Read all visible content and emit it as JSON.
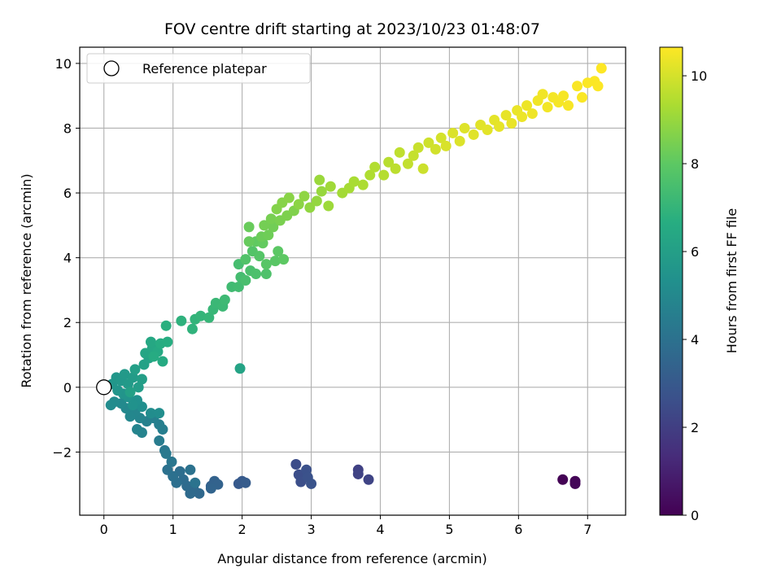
{
  "chart_data": {
    "type": "scatter",
    "title": "FOV centre drift starting at 2023/10/23 01:48:07",
    "xlabel": "Angular distance from reference (arcmin)",
    "ylabel": "Rotation from reference (arcmin)",
    "xlim": [
      -0.35,
      7.55
    ],
    "ylim": [
      -3.95,
      10.5
    ],
    "xticks": [
      0,
      1,
      2,
      3,
      4,
      5,
      6,
      7
    ],
    "yticks": [
      -2,
      0,
      2,
      4,
      6,
      8,
      10
    ],
    "ytick_labels": [
      "−2",
      "0",
      "2",
      "4",
      "6",
      "8",
      "10"
    ],
    "grid": true,
    "legend": {
      "placement": "top-left",
      "entries": [
        "Reference platepar"
      ]
    },
    "reference_point": {
      "x": 0,
      "y": 0
    },
    "colorbar": {
      "label": "Hours from first FF file",
      "colormap": "viridis",
      "range": [
        0,
        10.65
      ],
      "ticks": [
        0,
        2,
        4,
        6,
        8,
        10
      ]
    },
    "colormap_stops": [
      "#440154",
      "#472c7a",
      "#3b518b",
      "#2c718e",
      "#21908d",
      "#27ad81",
      "#5cc863",
      "#aadc32",
      "#fde725"
    ],
    "points": [
      {
        "x": 6.64,
        "y": -2.85,
        "t": 0.05
      },
      {
        "x": 6.82,
        "y": -2.9,
        "t": 0.1
      },
      {
        "x": 6.82,
        "y": -2.98,
        "t": 0.15
      },
      {
        "x": 3.68,
        "y": -2.55,
        "t": 2.1
      },
      {
        "x": 3.68,
        "y": -2.68,
        "t": 2.15
      },
      {
        "x": 3.83,
        "y": -2.85,
        "t": 2.2
      },
      {
        "x": 2.78,
        "y": -2.38,
        "t": 2.5
      },
      {
        "x": 2.82,
        "y": -2.7,
        "t": 2.55
      },
      {
        "x": 2.85,
        "y": -2.92,
        "t": 2.6
      },
      {
        "x": 2.93,
        "y": -2.55,
        "t": 2.65
      },
      {
        "x": 2.95,
        "y": -2.78,
        "t": 2.7
      },
      {
        "x": 3.0,
        "y": -2.98,
        "t": 2.75
      },
      {
        "x": 1.95,
        "y": -2.98,
        "t": 3.0
      },
      {
        "x": 2.0,
        "y": -2.9,
        "t": 3.05
      },
      {
        "x": 2.05,
        "y": -2.95,
        "t": 3.1
      },
      {
        "x": 1.55,
        "y": -3.05,
        "t": 3.3
      },
      {
        "x": 1.6,
        "y": -2.9,
        "t": 3.35
      },
      {
        "x": 1.65,
        "y": -3.0,
        "t": 3.4
      },
      {
        "x": 1.55,
        "y": -3.12,
        "t": 3.45
      },
      {
        "x": 1.38,
        "y": -3.28,
        "t": 3.6
      },
      {
        "x": 1.3,
        "y": -3.15,
        "t": 3.65
      },
      {
        "x": 1.25,
        "y": -3.28,
        "t": 3.7
      },
      {
        "x": 1.2,
        "y": -3.05,
        "t": 3.75
      },
      {
        "x": 1.15,
        "y": -2.85,
        "t": 3.8
      },
      {
        "x": 1.1,
        "y": -2.6,
        "t": 3.85
      },
      {
        "x": 1.05,
        "y": -2.95,
        "t": 3.9
      },
      {
        "x": 1.0,
        "y": -2.75,
        "t": 3.95
      },
      {
        "x": 0.92,
        "y": -2.55,
        "t": 4.0
      },
      {
        "x": 1.25,
        "y": -2.55,
        "t": 4.05
      },
      {
        "x": 1.32,
        "y": -2.95,
        "t": 4.1
      },
      {
        "x": 0.98,
        "y": -2.3,
        "t": 4.2
      },
      {
        "x": 0.88,
        "y": -1.95,
        "t": 4.3
      },
      {
        "x": 0.9,
        "y": -2.05,
        "t": 4.35
      },
      {
        "x": 0.8,
        "y": -1.65,
        "t": 4.45
      },
      {
        "x": 0.85,
        "y": -1.3,
        "t": 4.55
      },
      {
        "x": 0.8,
        "y": -1.15,
        "t": 4.6
      },
      {
        "x": 0.72,
        "y": -0.95,
        "t": 4.65
      },
      {
        "x": 0.62,
        "y": -1.05,
        "t": 4.7
      },
      {
        "x": 0.55,
        "y": -1.4,
        "t": 4.75
      },
      {
        "x": 0.48,
        "y": -1.3,
        "t": 4.8
      },
      {
        "x": 0.52,
        "y": -0.95,
        "t": 4.85
      },
      {
        "x": 0.45,
        "y": -0.75,
        "t": 4.9
      },
      {
        "x": 0.38,
        "y": -0.9,
        "t": 4.95
      },
      {
        "x": 0.32,
        "y": -0.65,
        "t": 5.0
      },
      {
        "x": 0.25,
        "y": -0.5,
        "t": 5.05
      },
      {
        "x": 0.15,
        "y": -0.45,
        "t": 5.1
      },
      {
        "x": 0.1,
        "y": -0.55,
        "t": 5.15
      },
      {
        "x": 0.68,
        "y": -0.8,
        "t": 5.2
      },
      {
        "x": 0.8,
        "y": -0.8,
        "t": 5.25
      },
      {
        "x": 0.55,
        "y": -0.6,
        "t": 5.3
      },
      {
        "x": 0.48,
        "y": -0.4,
        "t": 5.35
      },
      {
        "x": 0.42,
        "y": -0.55,
        "t": 5.4
      },
      {
        "x": 0.35,
        "y": -0.3,
        "t": 5.45
      },
      {
        "x": 0.28,
        "y": -0.2,
        "t": 5.5
      },
      {
        "x": 0.2,
        "y": -0.1,
        "t": 5.55
      },
      {
        "x": 0.12,
        "y": 0.1,
        "t": 5.6
      },
      {
        "x": 0.18,
        "y": 0.3,
        "t": 5.65
      },
      {
        "x": 0.25,
        "y": 0.2,
        "t": 5.7
      },
      {
        "x": 0.3,
        "y": 0.4,
        "t": 5.75
      },
      {
        "x": 0.35,
        "y": 0.1,
        "t": 5.8
      },
      {
        "x": 0.42,
        "y": 0.3,
        "t": 5.85
      },
      {
        "x": 0.5,
        "y": 0.0,
        "t": 5.9
      },
      {
        "x": 0.55,
        "y": 0.25,
        "t": 5.95
      },
      {
        "x": 0.45,
        "y": 0.55,
        "t": 6.0
      },
      {
        "x": 0.38,
        "y": -0.15,
        "t": 6.05
      },
      {
        "x": 0.58,
        "y": 0.7,
        "t": 6.1
      },
      {
        "x": 0.65,
        "y": 0.9,
        "t": 6.15
      },
      {
        "x": 1.97,
        "y": 0.58,
        "t": 6.2
      },
      {
        "x": 0.6,
        "y": 1.05,
        "t": 6.3
      },
      {
        "x": 0.7,
        "y": 1.2,
        "t": 6.35
      },
      {
        "x": 0.68,
        "y": 1.4,
        "t": 6.4
      },
      {
        "x": 0.78,
        "y": 1.1,
        "t": 6.45
      },
      {
        "x": 0.85,
        "y": 0.8,
        "t": 6.5
      },
      {
        "x": 0.72,
        "y": 0.95,
        "t": 6.55
      },
      {
        "x": 0.82,
        "y": 1.35,
        "t": 6.6
      },
      {
        "x": 0.92,
        "y": 1.4,
        "t": 6.65
      },
      {
        "x": 0.9,
        "y": 1.9,
        "t": 6.75
      },
      {
        "x": 1.12,
        "y": 2.05,
        "t": 6.85
      },
      {
        "x": 1.28,
        "y": 1.8,
        "t": 6.9
      },
      {
        "x": 1.32,
        "y": 2.1,
        "t": 6.95
      },
      {
        "x": 1.4,
        "y": 2.2,
        "t": 7.0
      },
      {
        "x": 1.52,
        "y": 2.15,
        "t": 7.05
      },
      {
        "x": 1.58,
        "y": 2.4,
        "t": 7.1
      },
      {
        "x": 1.62,
        "y": 2.6,
        "t": 7.15
      },
      {
        "x": 1.72,
        "y": 2.5,
        "t": 7.2
      },
      {
        "x": 1.75,
        "y": 2.7,
        "t": 7.25
      },
      {
        "x": 1.85,
        "y": 3.1,
        "t": 7.3
      },
      {
        "x": 1.95,
        "y": 3.1,
        "t": 7.35
      },
      {
        "x": 1.98,
        "y": 3.4,
        "t": 7.4
      },
      {
        "x": 1.95,
        "y": 3.8,
        "t": 7.45
      },
      {
        "x": 2.05,
        "y": 3.3,
        "t": 7.5
      },
      {
        "x": 2.12,
        "y": 3.6,
        "t": 7.55
      },
      {
        "x": 2.2,
        "y": 3.5,
        "t": 7.6
      },
      {
        "x": 2.35,
        "y": 3.5,
        "t": 7.65
      },
      {
        "x": 2.05,
        "y": 3.95,
        "t": 7.7
      },
      {
        "x": 2.15,
        "y": 4.2,
        "t": 7.75
      },
      {
        "x": 2.25,
        "y": 4.05,
        "t": 7.8
      },
      {
        "x": 2.35,
        "y": 3.8,
        "t": 7.85
      },
      {
        "x": 2.48,
        "y": 3.9,
        "t": 7.9
      },
      {
        "x": 2.52,
        "y": 4.2,
        "t": 7.95
      },
      {
        "x": 2.6,
        "y": 3.95,
        "t": 8.0
      },
      {
        "x": 2.2,
        "y": 4.5,
        "t": 8.05
      },
      {
        "x": 2.3,
        "y": 4.45,
        "t": 8.1
      },
      {
        "x": 2.1,
        "y": 4.5,
        "t": 8.15
      },
      {
        "x": 2.1,
        "y": 4.95,
        "t": 8.2
      },
      {
        "x": 2.28,
        "y": 4.65,
        "t": 8.25
      },
      {
        "x": 2.38,
        "y": 4.7,
        "t": 8.3
      },
      {
        "x": 2.45,
        "y": 4.95,
        "t": 8.35
      },
      {
        "x": 2.32,
        "y": 5.0,
        "t": 8.4
      },
      {
        "x": 2.42,
        "y": 5.2,
        "t": 8.45
      },
      {
        "x": 2.55,
        "y": 5.15,
        "t": 8.5
      },
      {
        "x": 2.65,
        "y": 5.3,
        "t": 8.55
      },
      {
        "x": 2.75,
        "y": 5.45,
        "t": 8.6
      },
      {
        "x": 2.5,
        "y": 5.5,
        "t": 8.65
      },
      {
        "x": 2.58,
        "y": 5.7,
        "t": 8.7
      },
      {
        "x": 2.68,
        "y": 5.85,
        "t": 8.75
      },
      {
        "x": 2.82,
        "y": 5.65,
        "t": 8.8
      },
      {
        "x": 2.9,
        "y": 5.9,
        "t": 8.85
      },
      {
        "x": 2.98,
        "y": 5.55,
        "t": 8.9
      },
      {
        "x": 3.08,
        "y": 5.75,
        "t": 8.95
      },
      {
        "x": 3.15,
        "y": 6.05,
        "t": 9.0
      },
      {
        "x": 3.12,
        "y": 6.4,
        "t": 9.05
      },
      {
        "x": 3.25,
        "y": 5.6,
        "t": 9.1
      },
      {
        "x": 3.28,
        "y": 6.2,
        "t": 9.15
      },
      {
        "x": 3.45,
        "y": 6.0,
        "t": 9.2
      },
      {
        "x": 3.55,
        "y": 6.15,
        "t": 9.25
      },
      {
        "x": 3.62,
        "y": 6.35,
        "t": 9.3
      },
      {
        "x": 3.75,
        "y": 6.25,
        "t": 9.35
      },
      {
        "x": 3.85,
        "y": 6.55,
        "t": 9.4
      },
      {
        "x": 3.92,
        "y": 6.8,
        "t": 9.45
      },
      {
        "x": 4.05,
        "y": 6.55,
        "t": 9.5
      },
      {
        "x": 4.12,
        "y": 6.95,
        "t": 9.55
      },
      {
        "x": 4.22,
        "y": 6.75,
        "t": 9.6
      },
      {
        "x": 4.28,
        "y": 7.25,
        "t": 9.65
      },
      {
        "x": 4.4,
        "y": 6.9,
        "t": 9.7
      },
      {
        "x": 4.48,
        "y": 7.15,
        "t": 9.75
      },
      {
        "x": 4.55,
        "y": 7.4,
        "t": 9.8
      },
      {
        "x": 4.62,
        "y": 6.75,
        "t": 9.85
      },
      {
        "x": 4.7,
        "y": 7.55,
        "t": 9.9
      },
      {
        "x": 4.8,
        "y": 7.35,
        "t": 9.95
      },
      {
        "x": 4.88,
        "y": 7.7,
        "t": 10.0
      },
      {
        "x": 4.95,
        "y": 7.45,
        "t": 10.05
      },
      {
        "x": 5.05,
        "y": 7.85,
        "t": 10.1
      },
      {
        "x": 5.15,
        "y": 7.6,
        "t": 10.12
      },
      {
        "x": 5.22,
        "y": 8.0,
        "t": 10.15
      },
      {
        "x": 5.35,
        "y": 7.8,
        "t": 10.18
      },
      {
        "x": 5.45,
        "y": 8.1,
        "t": 10.2
      },
      {
        "x": 5.55,
        "y": 7.95,
        "t": 10.23
      },
      {
        "x": 5.65,
        "y": 8.25,
        "t": 10.25
      },
      {
        "x": 5.72,
        "y": 8.05,
        "t": 10.28
      },
      {
        "x": 5.82,
        "y": 8.4,
        "t": 10.3
      },
      {
        "x": 5.9,
        "y": 8.15,
        "t": 10.33
      },
      {
        "x": 5.98,
        "y": 8.55,
        "t": 10.35
      },
      {
        "x": 6.05,
        "y": 8.35,
        "t": 10.38
      },
      {
        "x": 6.12,
        "y": 8.7,
        "t": 10.4
      },
      {
        "x": 6.2,
        "y": 8.45,
        "t": 10.42
      },
      {
        "x": 6.28,
        "y": 8.85,
        "t": 10.44
      },
      {
        "x": 6.35,
        "y": 9.05,
        "t": 10.46
      },
      {
        "x": 6.42,
        "y": 8.65,
        "t": 10.48
      },
      {
        "x": 6.5,
        "y": 8.95,
        "t": 10.5
      },
      {
        "x": 6.58,
        "y": 8.8,
        "t": 10.52
      },
      {
        "x": 6.65,
        "y": 9.0,
        "t": 10.54
      },
      {
        "x": 6.72,
        "y": 8.7,
        "t": 10.56
      },
      {
        "x": 6.85,
        "y": 9.3,
        "t": 10.58
      },
      {
        "x": 6.92,
        "y": 8.95,
        "t": 10.6
      },
      {
        "x": 7.0,
        "y": 9.4,
        "t": 10.61
      },
      {
        "x": 7.1,
        "y": 9.45,
        "t": 10.62
      },
      {
        "x": 7.15,
        "y": 9.3,
        "t": 10.63
      },
      {
        "x": 7.2,
        "y": 9.85,
        "t": 10.65
      }
    ]
  }
}
